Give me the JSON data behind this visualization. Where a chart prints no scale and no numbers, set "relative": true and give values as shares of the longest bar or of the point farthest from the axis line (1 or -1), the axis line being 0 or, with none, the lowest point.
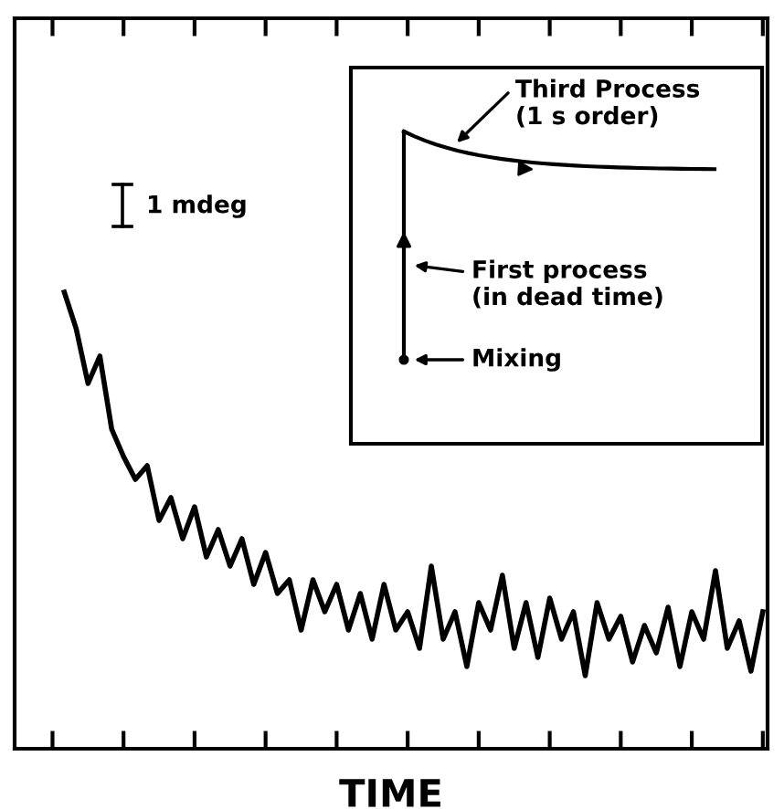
{
  "chart_data": {
    "type": "line",
    "relative": true,
    "xlabel": "TIME",
    "color": "#000000",
    "categories": [
      null,
      null,
      null,
      null,
      null,
      null,
      null,
      null,
      null,
      null,
      null,
      null,
      null,
      null,
      null,
      null,
      null,
      null,
      null,
      null,
      null,
      null,
      null,
      null,
      null,
      null,
      null,
      null,
      null,
      null,
      null,
      null,
      null,
      null,
      null,
      null,
      null,
      null,
      null,
      null,
      null,
      null,
      null,
      null,
      null,
      null,
      null,
      null,
      null,
      null,
      null,
      null,
      null,
      null,
      null,
      null,
      null,
      null,
      null,
      null,
      null,
      null,
      null,
      null
    ],
    "values": [
      null,
      null,
      null,
      null,
      1.0,
      0.92,
      0.8,
      0.86,
      0.7,
      0.64,
      0.59,
      0.62,
      0.5,
      0.55,
      0.46,
      0.53,
      0.42,
      0.48,
      0.4,
      0.46,
      0.36,
      0.43,
      0.34,
      0.37,
      0.26,
      0.37,
      0.3,
      0.36,
      0.26,
      0.34,
      0.24,
      0.36,
      0.26,
      0.3,
      0.22,
      0.4,
      0.24,
      0.3,
      0.18,
      0.32,
      0.26,
      0.38,
      0.22,
      0.32,
      0.2,
      0.33,
      0.24,
      0.3,
      0.16,
      0.32,
      0.24,
      0.29,
      0.19,
      0.27,
      0.21,
      0.31,
      0.18,
      0.3,
      0.24,
      0.39,
      0.22,
      0.28,
      0.17,
      0.3
    ],
    "annotations": [
      "1 mdeg",
      "Third Process\n(1 s order)",
      "First process\n(in dead time)",
      "Mixing"
    ],
    "grid": false,
    "legend": false,
    "marker": "none",
    "line_style": "solid"
  }
}
